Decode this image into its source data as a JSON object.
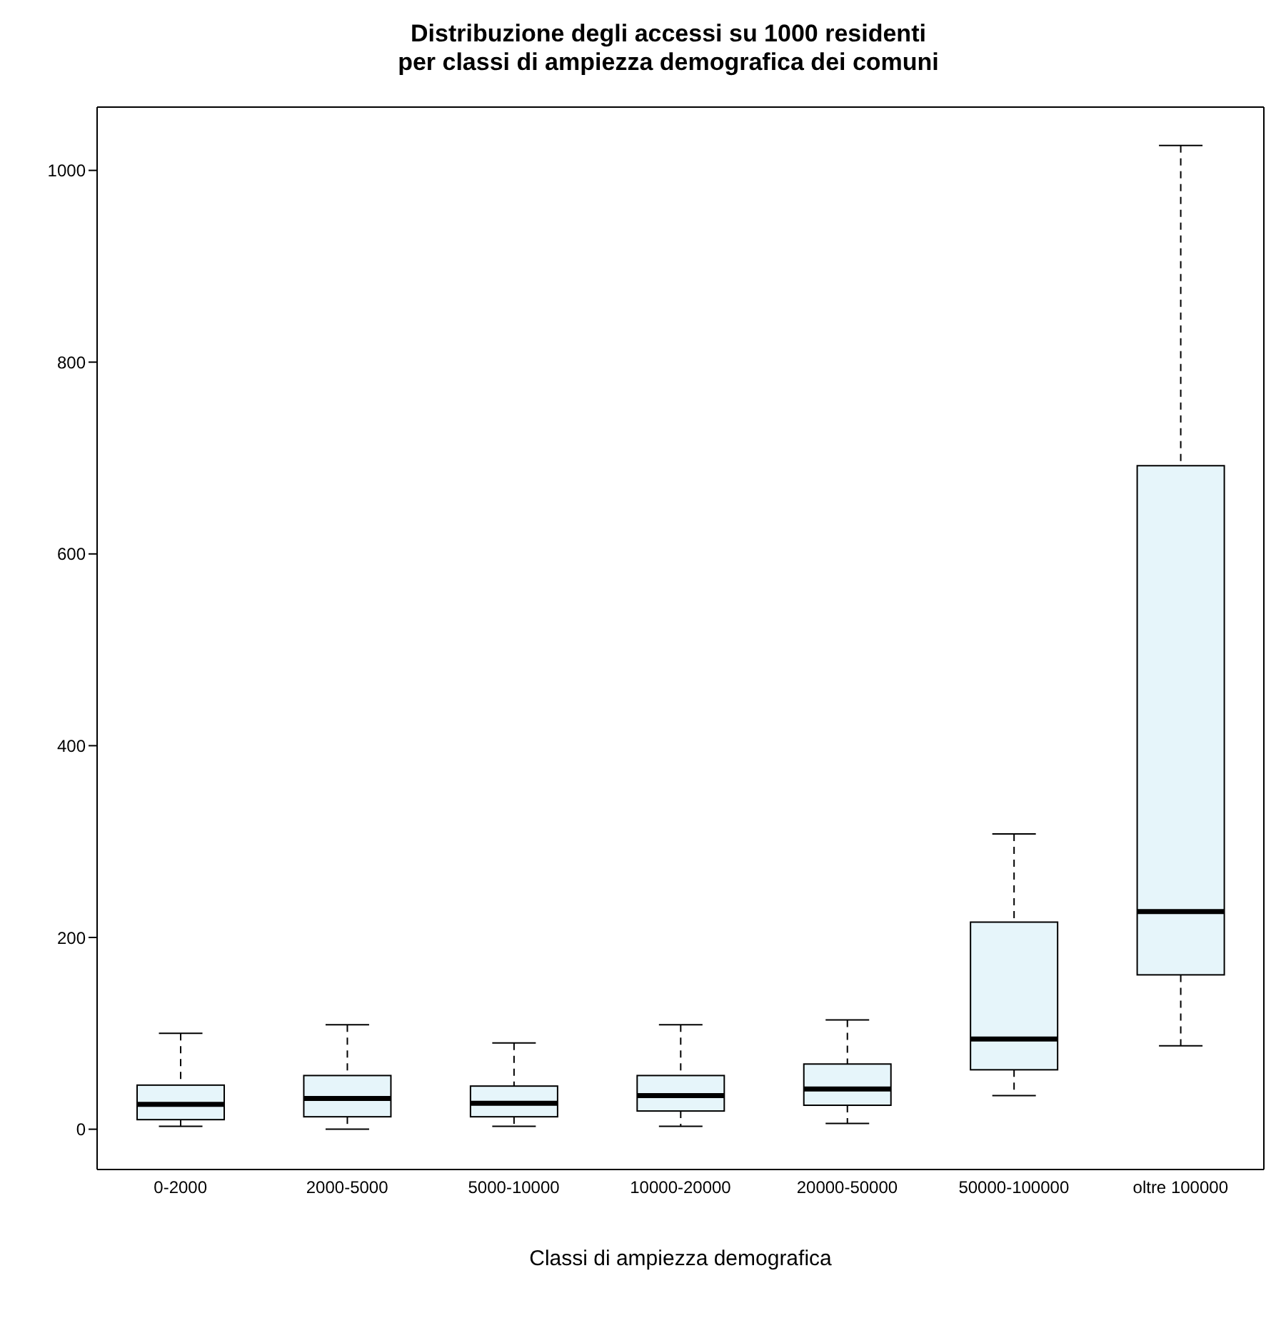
{
  "chart_data": {
    "type": "box",
    "title": "Distribuzione degli accessi su 1000 residenti\nper classi di ampiezza demografica dei comuni",
    "xlabel": "Classi di ampiezza demografica",
    "categories": [
      "0-2000",
      "2000-5000",
      "5000-10000",
      "10000-20000",
      "20000-50000",
      "50000-100000",
      "oltre 100000"
    ],
    "boxes": [
      {
        "low": 3,
        "q1": 10,
        "median": 26,
        "q3": 46,
        "high": 100
      },
      {
        "low": 0,
        "q1": 13,
        "median": 32,
        "q3": 56,
        "high": 109
      },
      {
        "low": 3,
        "q1": 13,
        "median": 27,
        "q3": 45,
        "high": 90
      },
      {
        "low": 3,
        "q1": 19,
        "median": 35,
        "q3": 56,
        "high": 109
      },
      {
        "low": 6,
        "q1": 25,
        "median": 42,
        "q3": 68,
        "high": 114
      },
      {
        "low": 35,
        "q1": 62,
        "median": 94,
        "q3": 216,
        "high": 308
      },
      {
        "low": 87,
        "q1": 161,
        "median": 227,
        "q3": 692,
        "high": 1026
      }
    ],
    "color": "#e6f5fa",
    "ylim": [
      -42,
      1066
    ],
    "yticks": [
      0,
      200,
      400,
      600,
      800,
      1000
    ],
    "grid": false
  }
}
